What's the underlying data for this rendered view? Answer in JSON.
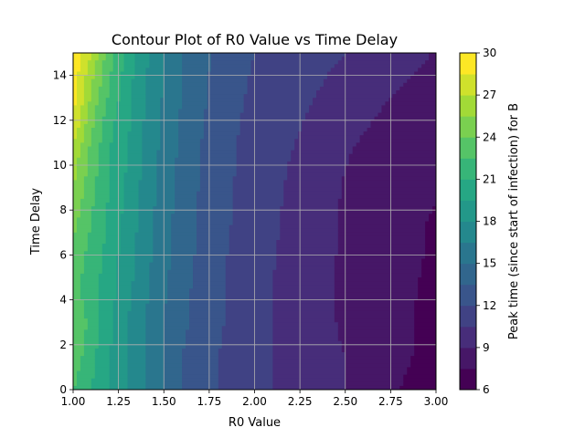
{
  "chart_data": {
    "type": "heatmap",
    "subtype": "filled-contour",
    "title": "Contour Plot of R0 Value vs Time Delay",
    "xlabel": "R0 Value",
    "ylabel": "Time Delay",
    "colorbar_label": "Peak time (since start of infection) for B",
    "xlim": [
      1.0,
      3.0
    ],
    "ylim": [
      0,
      15
    ],
    "x_ticks": [
      "1.00",
      "1.25",
      "1.50",
      "1.75",
      "2.00",
      "2.25",
      "2.50",
      "2.75",
      "3.00"
    ],
    "y_ticks": [
      "0",
      "2",
      "4",
      "6",
      "8",
      "10",
      "12",
      "14"
    ],
    "colorbar_ticks": [
      "6",
      "9",
      "12",
      "15",
      "18",
      "21",
      "24",
      "27",
      "30"
    ],
    "levels": [
      6,
      7.5,
      9,
      10.5,
      12,
      13.5,
      15,
      16.5,
      18,
      19.5,
      21,
      22.5,
      24,
      25.5,
      27,
      28.5,
      30
    ],
    "colormap": "viridis",
    "grid": true,
    "x": [
      1.0,
      1.1,
      1.2,
      1.3,
      1.4,
      1.5,
      1.6,
      1.7,
      1.8,
      1.9,
      2.0,
      2.1,
      2.2,
      2.3,
      2.4,
      2.5,
      2.6,
      2.7,
      2.8,
      2.9,
      3.0
    ],
    "y": [
      0,
      1.5,
      3,
      4.5,
      6,
      7.5,
      9,
      10.5,
      12,
      13.5,
      15
    ],
    "z": [
      [
        22.5,
        21,
        19.5,
        18,
        16.5,
        15,
        13.5,
        12.5,
        12,
        11.5,
        11,
        10.5,
        10,
        9.5,
        9,
        9,
        8.5,
        8,
        7.5,
        7,
        6.8
      ],
      [
        23.5,
        21.5,
        19.5,
        18,
        16.5,
        15,
        13.5,
        12.8,
        12,
        11.5,
        11,
        10.5,
        10,
        9.5,
        9.2,
        9,
        8.6,
        8.2,
        7.8,
        7.4,
        7
      ],
      [
        24,
        22,
        20,
        18,
        16.5,
        15,
        13.8,
        13,
        12.2,
        11.6,
        11,
        10.5,
        10,
        9.5,
        9.2,
        8.8,
        8.5,
        8.2,
        7.8,
        7.4,
        7
      ],
      [
        23,
        21.5,
        20,
        18.5,
        16.8,
        15.2,
        14,
        13,
        12.2,
        11.6,
        11,
        10.5,
        10,
        9.5,
        9.1,
        8.8,
        8.4,
        8.1,
        7.8,
        7.5,
        7.2
      ],
      [
        23.5,
        22,
        20.5,
        18.5,
        17,
        15.5,
        14.2,
        13.2,
        12.4,
        11.6,
        11,
        10.6,
        10.1,
        9.6,
        9.2,
        8.8,
        8.4,
        8.1,
        7.9,
        7.6,
        7.3
      ],
      [
        24.5,
        22.5,
        20.5,
        19,
        17.2,
        15.6,
        14.3,
        13.3,
        12.5,
        11.8,
        11.1,
        10.7,
        10.2,
        9.7,
        9.3,
        8.8,
        8.4,
        8.1,
        7.9,
        7.6,
        7.4
      ],
      [
        25.5,
        23,
        21,
        19.2,
        17.4,
        15.8,
        14.5,
        13.4,
        12.6,
        11.9,
        11.2,
        10.8,
        10.3,
        9.8,
        9.3,
        8.9,
        8.5,
        8.2,
        8,
        7.8,
        7.6
      ],
      [
        26.5,
        23.5,
        21,
        19.5,
        17.6,
        16,
        14.6,
        13.5,
        12.7,
        12,
        11.4,
        11,
        10.5,
        10,
        9.5,
        9.1,
        8.7,
        8.4,
        8.1,
        7.9,
        7.7
      ],
      [
        28.5,
        24.5,
        21.5,
        19.8,
        17.8,
        16.2,
        14.8,
        13.7,
        12.8,
        12.1,
        11.6,
        11.2,
        10.8,
        10.4,
        10,
        9.6,
        9.2,
        8.8,
        8.4,
        8.1,
        7.9
      ],
      [
        29.5,
        25.5,
        22.5,
        20,
        18,
        16.4,
        15,
        13.9,
        13,
        12.3,
        11.8,
        11.4,
        11,
        10.7,
        10.4,
        10.2,
        9.8,
        9.4,
        9,
        8.7,
        8.4
      ],
      [
        29.5,
        27,
        23,
        20.5,
        18.3,
        16.6,
        15.1,
        14,
        13.1,
        12.4,
        12,
        11.6,
        11.3,
        11,
        10.7,
        10.5,
        10.3,
        10.1,
        9.7,
        9.3,
        8.9
      ]
    ]
  }
}
